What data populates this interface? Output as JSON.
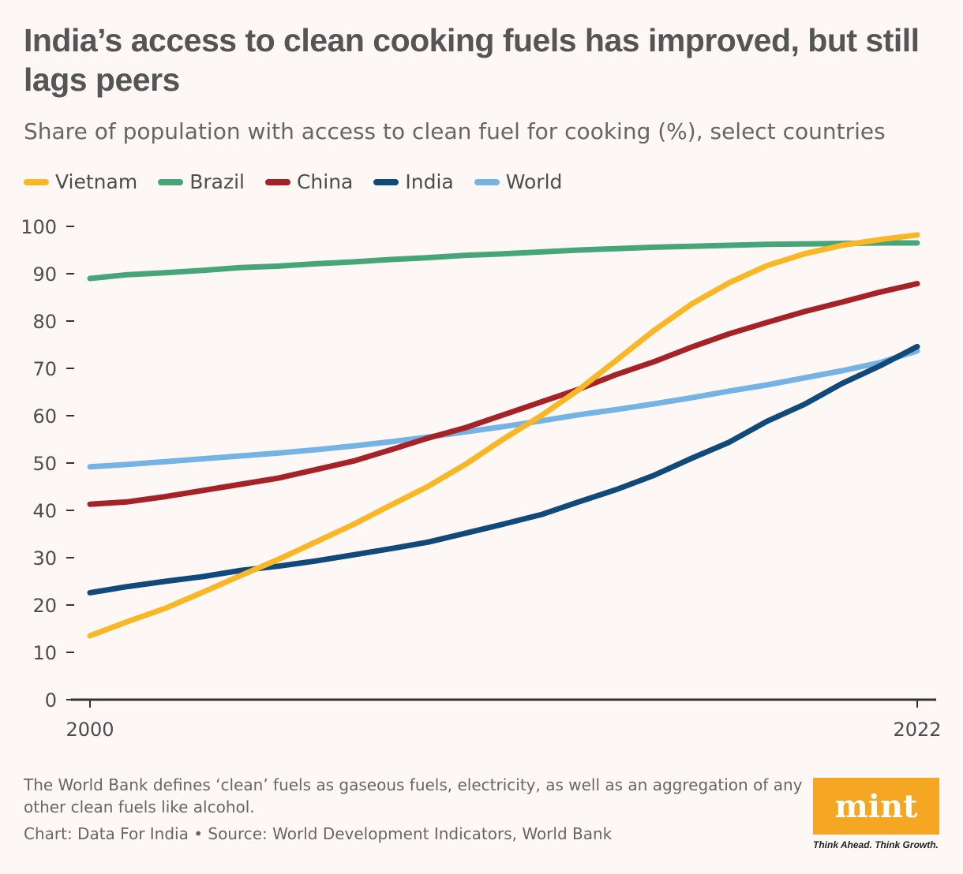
{
  "title": "India’s access to clean cooking fuels has improved, but still lags peers",
  "subtitle": "Share of population with access to clean fuel for cooking (%), select countries",
  "note": "The World Bank defines ‘clean’ fuels as gaseous fuels, electricity, as well as an aggregation of any other clean fuels like alcohol.",
  "source": "Chart: Data For India • Source: World Development Indicators, World Bank",
  "logo": {
    "text": "mint",
    "tagline": "Think Ahead. Think Growth."
  },
  "chart_data": {
    "type": "line",
    "x": [
      2000,
      2001,
      2002,
      2003,
      2004,
      2005,
      2006,
      2007,
      2008,
      2009,
      2010,
      2011,
      2012,
      2013,
      2014,
      2015,
      2016,
      2017,
      2018,
      2019,
      2020,
      2021,
      2022
    ],
    "x_tick_labels": [
      "2000",
      "2022"
    ],
    "ylim": [
      0,
      100
    ],
    "y_ticks": [
      0,
      10,
      20,
      30,
      40,
      50,
      60,
      70,
      80,
      90,
      100
    ],
    "grid": false,
    "legend_position": "top-left",
    "series": [
      {
        "name": "Vietnam",
        "color": "#f9b625",
        "values": [
          13.5,
          16.5,
          19.3,
          22.7,
          26.2,
          29.6,
          33.3,
          37.0,
          41.1,
          45.1,
          49.8,
          55.1,
          60.0,
          65.5,
          71.7,
          78.0,
          83.6,
          88.1,
          91.7,
          94.2,
          96.0,
          97.2,
          98.2
        ]
      },
      {
        "name": "Brazil",
        "color": "#46a67a",
        "values": [
          89.0,
          89.8,
          90.2,
          90.7,
          91.3,
          91.6,
          92.1,
          92.5,
          93.0,
          93.4,
          93.9,
          94.2,
          94.6,
          95.0,
          95.3,
          95.6,
          95.8,
          96.0,
          96.2,
          96.3,
          96.4,
          96.5,
          96.5
        ]
      },
      {
        "name": "China",
        "color": "#a52226",
        "values": [
          41.3,
          41.8,
          42.9,
          44.2,
          45.5,
          46.8,
          48.6,
          50.4,
          52.8,
          55.3,
          57.5,
          60.2,
          62.9,
          65.6,
          68.7,
          71.4,
          74.5,
          77.3,
          79.7,
          82.0,
          84.0,
          86.1,
          87.9
        ]
      },
      {
        "name": "India",
        "color": "#114a7a",
        "values": [
          22.6,
          23.9,
          25.0,
          26.0,
          27.3,
          28.2,
          29.3,
          30.6,
          31.9,
          33.3,
          35.2,
          37.1,
          39.1,
          41.8,
          44.4,
          47.4,
          51.0,
          54.4,
          58.8,
          62.4,
          66.8,
          70.5,
          74.6
        ]
      },
      {
        "name": "World",
        "color": "#74b3e3",
        "values": [
          49.2,
          49.7,
          50.3,
          50.9,
          51.5,
          52.1,
          52.8,
          53.6,
          54.5,
          55.5,
          56.6,
          57.7,
          58.9,
          60.2,
          61.3,
          62.5,
          63.8,
          65.2,
          66.5,
          68.0,
          69.5,
          71.2,
          73.7
        ]
      }
    ]
  }
}
